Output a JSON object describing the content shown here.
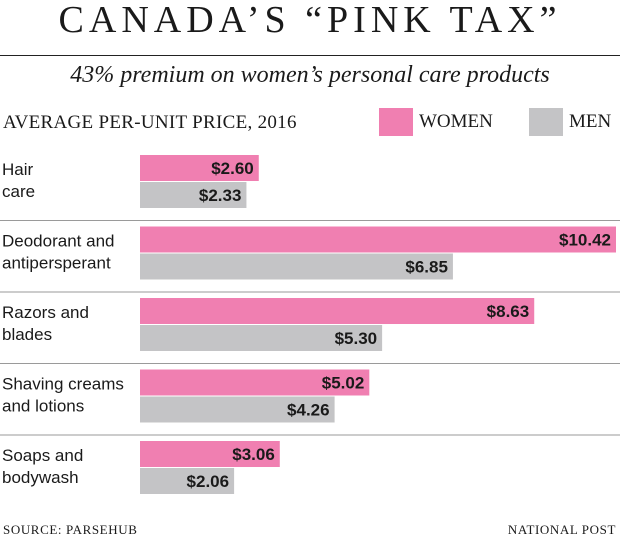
{
  "title": "CANADA’S “PINK TAX”",
  "subtitle": "43% premium on women’s personal care products",
  "heading": "AVERAGE PER-UNIT PRICE, 2016",
  "legend": {
    "women": "WOMEN",
    "men": "MEN"
  },
  "colors": {
    "women": "#f07fb1",
    "men": "#c4c4c6",
    "divider": "#9a9a9a"
  },
  "footer": {
    "source": "SOURCE: PARSEHUB",
    "credit": "NATIONAL POST"
  },
  "chart_data": {
    "type": "bar",
    "orientation": "horizontal",
    "categories": [
      [
        "Hair",
        "care"
      ],
      [
        "Deodorant and",
        "antipersperant"
      ],
      [
        "Razors and",
        "blades"
      ],
      [
        "Shaving creams",
        "and lotions"
      ],
      [
        "Soaps and",
        "bodywash"
      ]
    ],
    "series": [
      {
        "name": "WOMEN",
        "values": [
          2.6,
          10.42,
          8.63,
          5.02,
          3.06
        ],
        "labels": [
          "$2.60",
          "$10.42",
          "$8.63",
          "$5.02",
          "$3.06"
        ]
      },
      {
        "name": "MEN",
        "values": [
          2.33,
          6.85,
          5.3,
          4.26,
          2.06
        ],
        "labels": [
          "$2.33",
          "$6.85",
          "$5.30",
          "$4.26",
          "$2.06"
        ]
      }
    ],
    "xlim": [
      0,
      10.42
    ],
    "grid": false,
    "legend_position": "top-right"
  }
}
